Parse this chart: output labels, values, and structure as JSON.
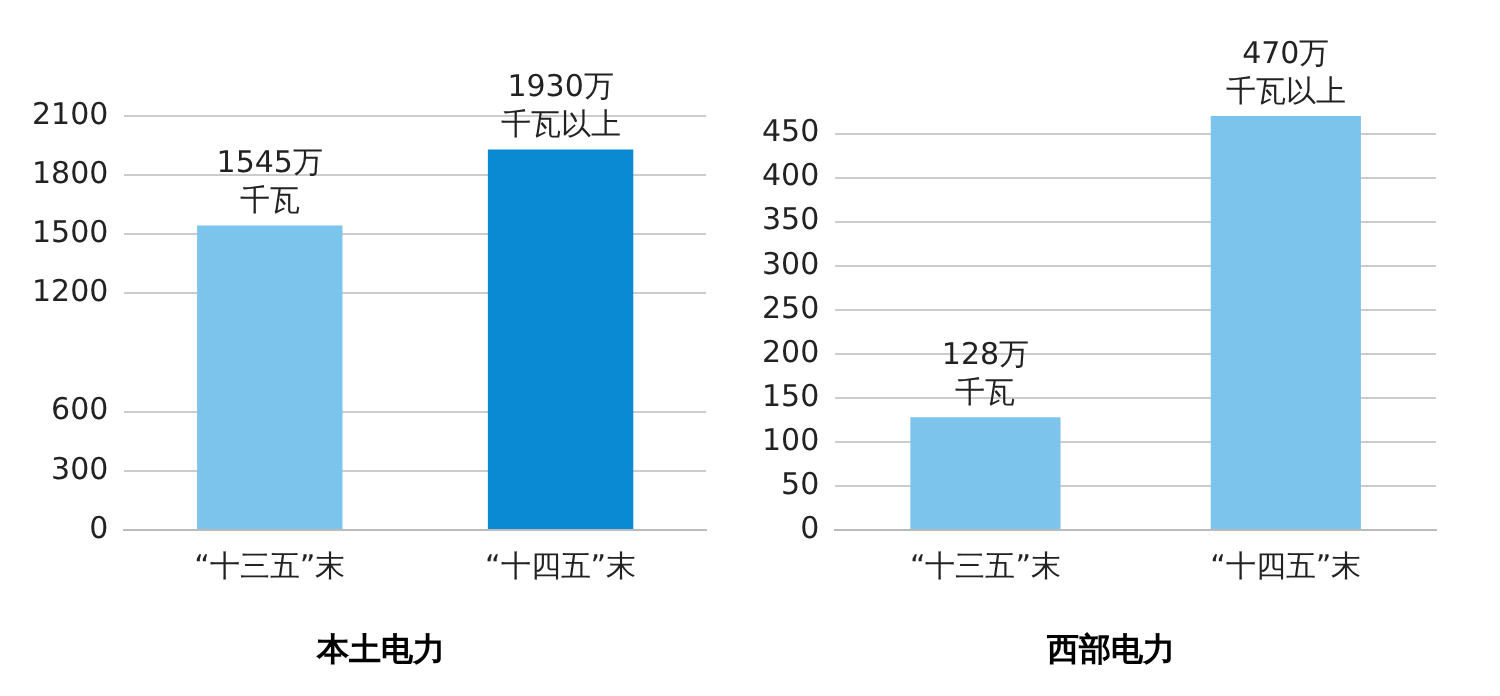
{
  "chart_data": [
    {
      "type": "bar",
      "title": "本土电力",
      "categories": [
        "“十三五”末",
        "“十四五”末"
      ],
      "values": [
        1545,
        1930
      ],
      "colors": [
        "#7dc4ec",
        "#0a8ad3"
      ],
      "value_labels": [
        "1545万千瓦",
        "1930万千瓦以上"
      ],
      "ylim": [
        0,
        2100
      ],
      "yticks": [
        0,
        300,
        600,
        1200,
        1500,
        1800,
        2100
      ],
      "grid": "y"
    },
    {
      "type": "bar",
      "title": "西部电力",
      "categories": [
        "“十三五”末",
        "“十四五”末"
      ],
      "values": [
        128,
        470
      ],
      "colors": [
        "#7dc4ec",
        "#7dc4ec"
      ],
      "value_labels": [
        "128万千瓦",
        "470万千瓦以上"
      ],
      "ylim": [
        0,
        470
      ],
      "yticks": [
        0,
        50,
        100,
        150,
        200,
        250,
        300,
        350,
        400,
        450
      ],
      "grid": "y"
    }
  ]
}
